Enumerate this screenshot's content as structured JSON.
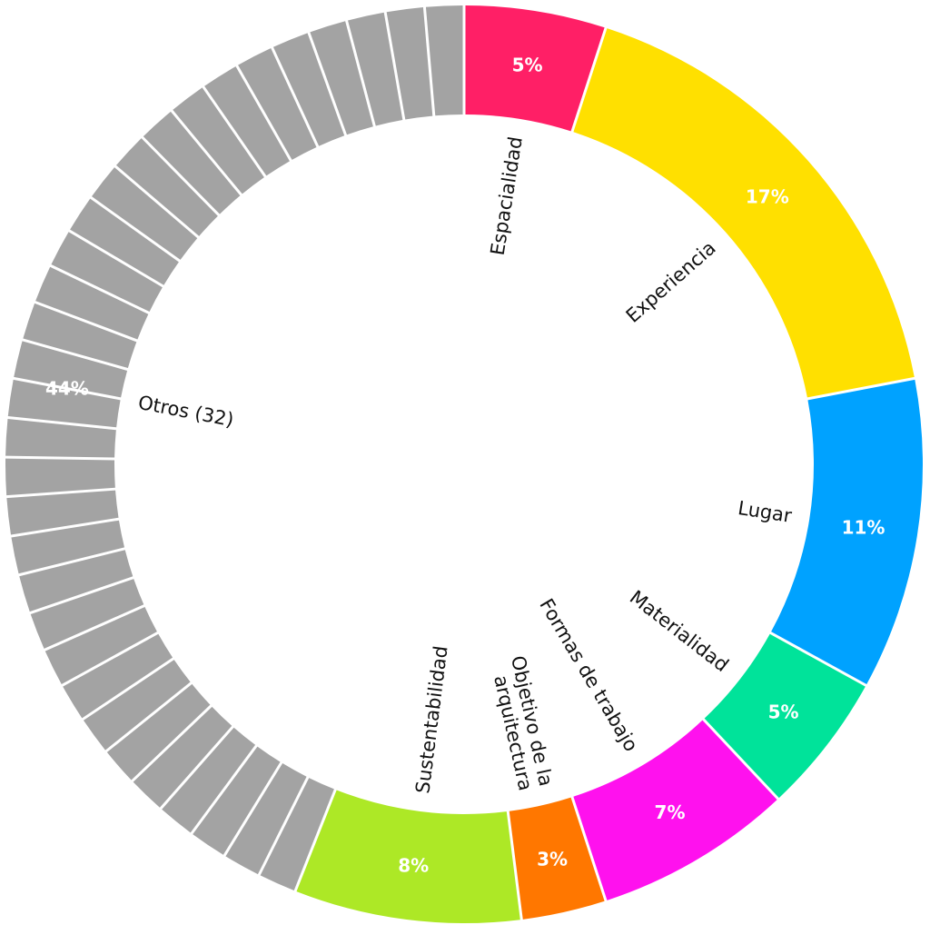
{
  "chart_data": {
    "type": "pie",
    "title": "",
    "slices": [
      {
        "label": "Espacialidad",
        "value": 5,
        "value_label": "5%",
        "color": "#FF1F66"
      },
      {
        "label": "Experiencia",
        "value": 17,
        "value_label": "17%",
        "color": "#FFE000"
      },
      {
        "label": "Lugar",
        "value": 11,
        "value_label": "11%",
        "color": "#00A2FF"
      },
      {
        "label": "Materialidad",
        "value": 5,
        "value_label": "5%",
        "color": "#00E39A"
      },
      {
        "label": "Formas de trabajo",
        "value": 7,
        "value_label": "7%",
        "color": "#FF11EE"
      },
      {
        "label": "Objetivo de la arquitectura",
        "label_lines": [
          "Objetivo de la",
          "arquitectura"
        ],
        "value": 3,
        "value_label": "3%",
        "color": "#FF7700"
      },
      {
        "label": "Sustentabilidad",
        "value": 8,
        "value_label": "8%",
        "color": "#ADE826"
      },
      {
        "label": "Otros (32)",
        "value": 44,
        "value_label": "44%",
        "color": "#A3A3A3",
        "segments": 32
      }
    ]
  }
}
